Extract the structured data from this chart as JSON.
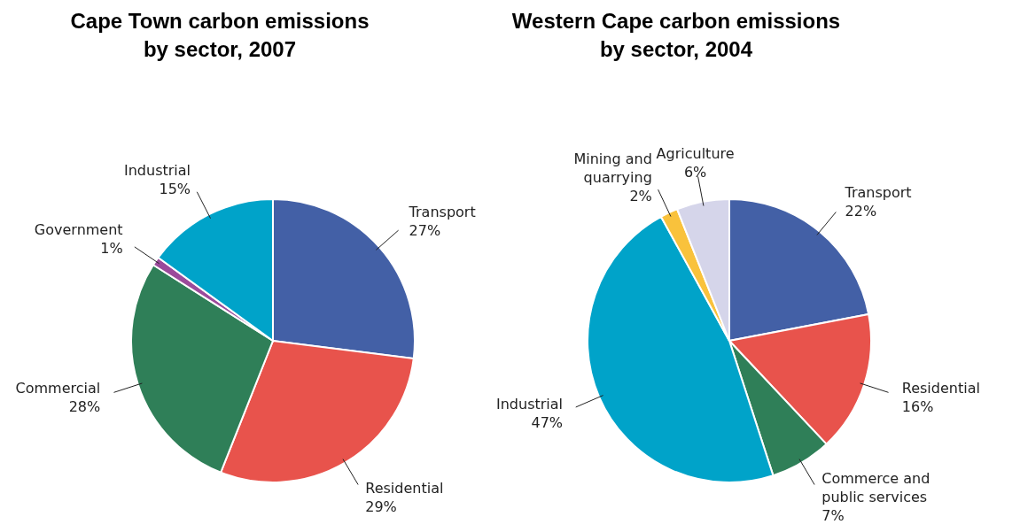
{
  "chart_data": [
    {
      "type": "pie",
      "title": "Cape Town carbon emissions by sector, 2007",
      "categories": [
        "Transport",
        "Residential",
        "Commercial",
        "Government",
        "Industrial"
      ],
      "values": [
        27,
        29,
        28,
        1,
        15
      ],
      "colors": [
        "#4360a6",
        "#e8534c",
        "#2f7f58",
        "#9b4a9b",
        "#00a3c9"
      ],
      "value_labels": [
        "27%",
        "29%",
        "28%",
        "1%",
        "15%"
      ]
    },
    {
      "type": "pie",
      "title": "Western Cape carbon emissions by sector, 2004",
      "categories": [
        "Transport",
        "Residential",
        "Commerce and public services",
        "Industrial",
        "Mining and quarrying",
        "Agriculture"
      ],
      "values": [
        22,
        16,
        7,
        47,
        2,
        6
      ],
      "colors": [
        "#4360a6",
        "#e8534c",
        "#2f7f58",
        "#00a3c9",
        "#f9c23c",
        "#d5d5ea"
      ],
      "value_labels": [
        "22%",
        "16%",
        "7%",
        "47%",
        "2%",
        "6%"
      ]
    }
  ]
}
